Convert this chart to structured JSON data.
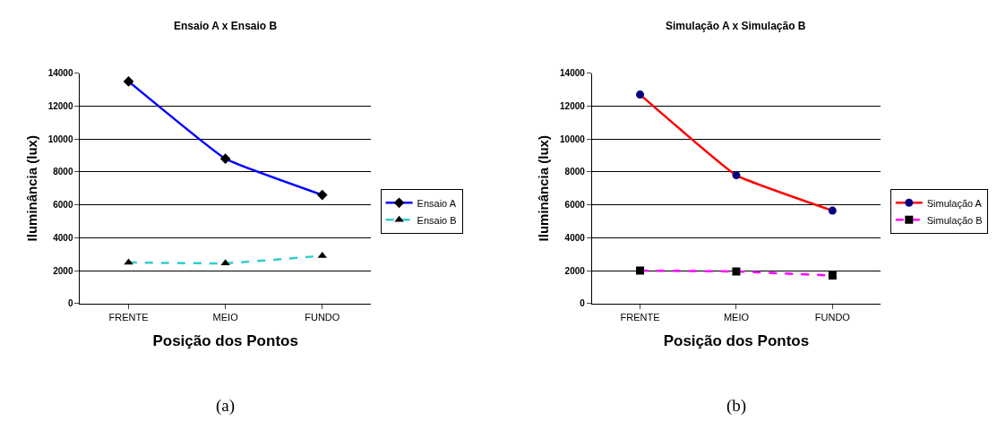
{
  "chart_data": [
    {
      "type": "line",
      "title": "Ensaio A x Ensaio B",
      "xlabel": "Posição dos Pontos",
      "ylabel": "Iluminância (lux)",
      "categories": [
        "FRENTE",
        "MEIO",
        "FUNDO"
      ],
      "series": [
        {
          "name": "Ensaio A",
          "color": "#0000ff",
          "values": [
            13500,
            8800,
            6600
          ],
          "marker": "diamond",
          "line_style": "solid"
        },
        {
          "name": "Ensaio B",
          "color": "#33cccc",
          "values": [
            2500,
            2450,
            2900
          ],
          "marker": "triangle",
          "line_style": "dashed"
        }
      ],
      "ylim": [
        0,
        14000
      ],
      "yticks": [
        0,
        2000,
        4000,
        6000,
        8000,
        10000,
        12000,
        14000
      ],
      "grid": "y",
      "legend": "right",
      "annotations": [
        "(a)"
      ]
    },
    {
      "type": "line",
      "title": "Simulação A x Simulação B",
      "xlabel": "Posição dos Pontos",
      "ylabel": "Iluminância (lux)",
      "categories": [
        "FRENTE",
        "MEIO",
        "FUNDO"
      ],
      "series": [
        {
          "name": "Simulação A",
          "color": "#ff0000",
          "values": [
            12700,
            7800,
            5650
          ],
          "marker": "circle",
          "line_style": "solid"
        },
        {
          "name": "Simulação B",
          "color": "#ff00ff",
          "values": [
            2000,
            1950,
            1700
          ],
          "marker": "square",
          "line_style": "dashed"
        }
      ],
      "ylim": [
        0,
        14000
      ],
      "yticks": [
        0,
        2000,
        4000,
        6000,
        8000,
        10000,
        12000,
        14000
      ],
      "grid": "y",
      "legend": "right",
      "annotations": [
        "(b)"
      ]
    }
  ]
}
